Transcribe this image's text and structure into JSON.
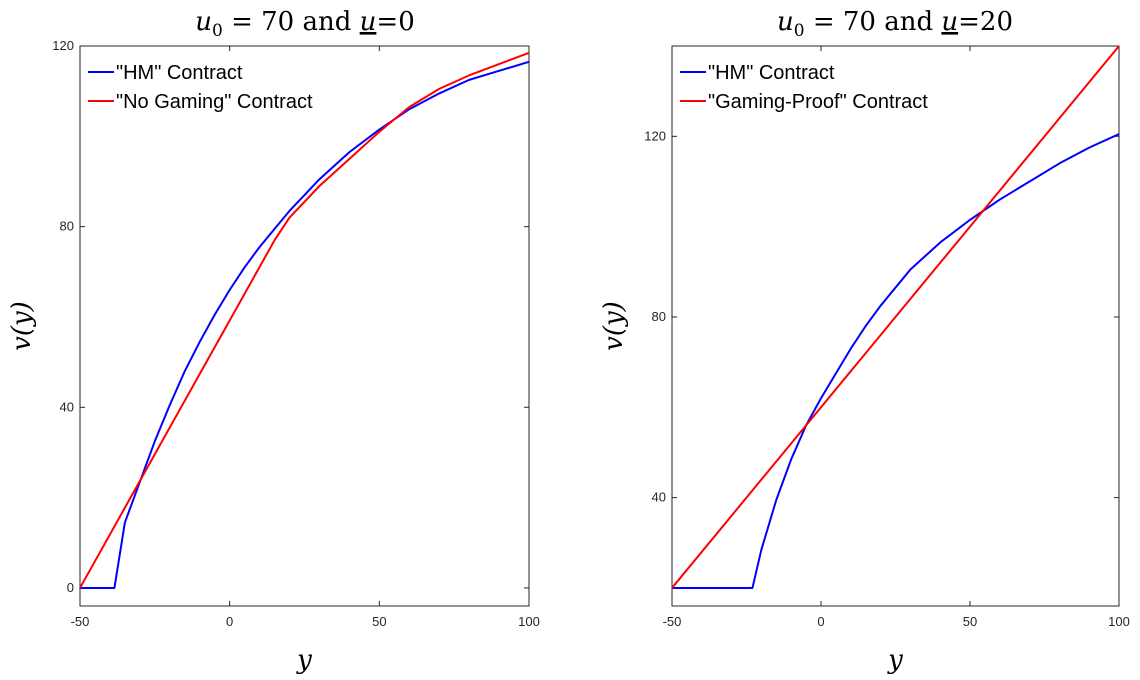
{
  "chart_data": [
    {
      "type": "line",
      "title": {
        "var": "u",
        "sub": "0",
        "eq": " = 70 and ",
        "ubar": "u",
        "tail": "=0"
      },
      "xlabel": "y",
      "ylabel": "v(y)",
      "xlim": [
        -50,
        100
      ],
      "ylim": [
        -4,
        120
      ],
      "xticks": [
        -50,
        0,
        50,
        100
      ],
      "xtick_labels": [
        "-50",
        "0",
        "50",
        "100"
      ],
      "yticks": [
        0,
        40,
        80,
        120
      ],
      "ytick_labels": [
        "0",
        "40",
        "80",
        "120"
      ],
      "grid": false,
      "legend_position": "top-left",
      "series": [
        {
          "name": "\"HM\" Contract",
          "color": "#0000ff",
          "x": [
            -50,
            -38.5,
            -35,
            -30,
            -25,
            -20,
            -15,
            -10,
            -5,
            0,
            5,
            10,
            15,
            20,
            25,
            30,
            40,
            50,
            60,
            70,
            80,
            90,
            100
          ],
          "y": [
            0,
            0,
            14.5,
            23.5,
            32.5,
            40.5,
            48,
            54.5,
            60.5,
            66,
            71,
            75.5,
            79.5,
            83.5,
            87,
            90.5,
            96.5,
            101.5,
            106,
            109.5,
            112.5,
            114.5,
            116.5
          ]
        },
        {
          "name": "\"No Gaming\" Contract",
          "color": "#ff0000",
          "x": [
            -50,
            15,
            20,
            30,
            40,
            50,
            60,
            70,
            80,
            90,
            100
          ],
          "y": [
            0,
            77,
            82,
            89,
            95,
            101,
            106.5,
            110.5,
            113.5,
            116,
            118.5
          ]
        }
      ]
    },
    {
      "type": "line",
      "title": {
        "var": "u",
        "sub": "0",
        "eq": " = 70 and ",
        "ubar": "u",
        "tail": "=20"
      },
      "xlabel": "y",
      "ylabel": "v(y)",
      "xlim": [
        -50,
        100
      ],
      "ylim": [
        16,
        140
      ],
      "xticks": [
        -50,
        0,
        50,
        100
      ],
      "xtick_labels": [
        "-50",
        "0",
        "50",
        "100"
      ],
      "yticks": [
        40,
        80,
        120
      ],
      "ytick_labels": [
        "40",
        "80",
        "120"
      ],
      "grid": false,
      "legend_position": "top-left",
      "series": [
        {
          "name": "\"HM\" Contract",
          "color": "#0000ff",
          "x": [
            -50,
            -23,
            -20,
            -15,
            -10,
            -5,
            0,
            5,
            10,
            15,
            20,
            30,
            40,
            50,
            60,
            70,
            80,
            90,
            100
          ],
          "y": [
            20,
            20,
            28.5,
            39.5,
            48.5,
            56,
            62,
            67.5,
            73,
            78,
            82.5,
            90.5,
            96.5,
            101.5,
            106,
            110,
            114,
            117.5,
            120.5
          ]
        },
        {
          "name": "\"Gaming-Proof\" Contract",
          "color": "#ff0000",
          "x": [
            -50,
            100
          ],
          "y": [
            20,
            140
          ]
        }
      ]
    }
  ]
}
